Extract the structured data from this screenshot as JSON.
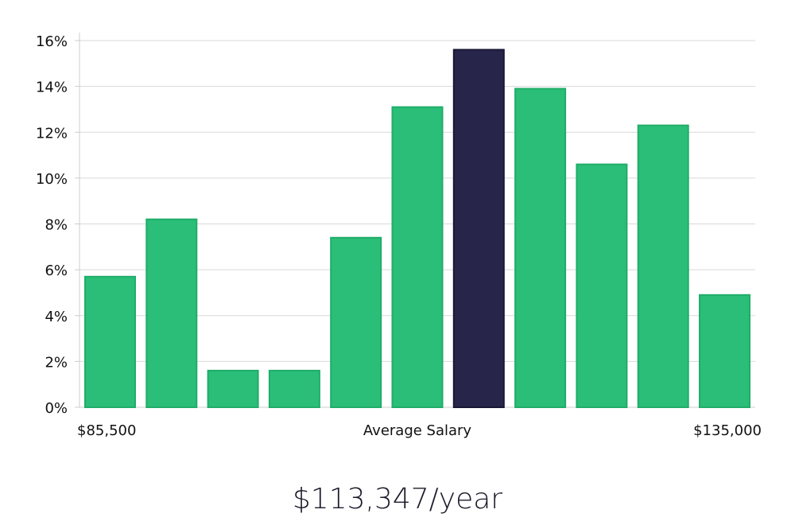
{
  "chart_data": {
    "type": "bar",
    "title": "",
    "xlabel": "Average Salary",
    "ylabel": "",
    "x_range_labels": {
      "min": "$85,500",
      "max": "$135,000"
    },
    "ylim": [
      0,
      16
    ],
    "yticks": [
      0,
      2,
      4,
      6,
      8,
      10,
      12,
      14,
      16
    ],
    "ytick_labels": [
      "0%",
      "2%",
      "4%",
      "6%",
      "8%",
      "10%",
      "12%",
      "14%",
      "16%"
    ],
    "grid": true,
    "values": [
      5.7,
      8.2,
      1.6,
      1.6,
      7.4,
      13.1,
      15.6,
      13.9,
      10.6,
      12.3,
      4.9
    ],
    "highlight_index": 6,
    "colors": {
      "bar": "#2abe78",
      "bar_edge": "#20ad68",
      "highlight": "#28254a",
      "highlight_edge": "#191735",
      "grid": "#d9d9d9",
      "axis": "#cccccc"
    }
  },
  "salary_text": "$113,347/year"
}
